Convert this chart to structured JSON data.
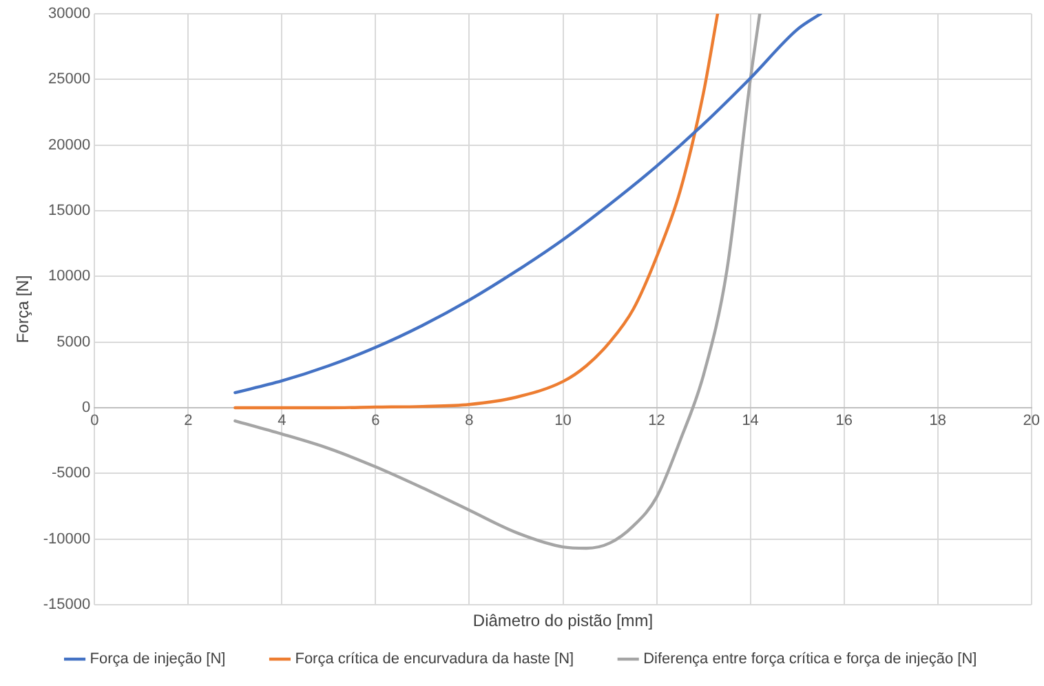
{
  "chart_data": {
    "type": "line",
    "xlabel": "Diâmetro do pistão [mm]",
    "ylabel": "Força [N]",
    "xlim": [
      0,
      20
    ],
    "xticks": [
      0,
      2,
      4,
      6,
      8,
      10,
      12,
      14,
      16,
      18,
      20
    ],
    "ylim": [
      -15000,
      30000
    ],
    "yticks": [
      -15000,
      -10000,
      -5000,
      0,
      5000,
      10000,
      15000,
      20000,
      25000,
      30000
    ],
    "grid": true,
    "legend": "bottom",
    "marker": "none",
    "line_style": "solid",
    "series": [
      {
        "name": "Força de injeção [N]",
        "color": "#4472c4",
        "x": [
          3,
          4,
          5,
          6,
          7,
          8,
          9,
          10,
          11,
          12,
          13,
          14,
          15,
          15.5
        ],
        "values": [
          1150,
          2050,
          3200,
          4600,
          6270,
          8200,
          10400,
          12800,
          15500,
          18400,
          21600,
          25100,
          28800,
          30000
        ]
      },
      {
        "name": "Força crítica de encurvadura da haste [N]",
        "color": "#ed7d31",
        "x": [
          3,
          4,
          5,
          6,
          7,
          8,
          9,
          10,
          10.5,
          11,
          11.5,
          12,
          12.5,
          13,
          13.3
        ],
        "values": [
          0,
          0,
          0,
          50,
          100,
          250,
          800,
          2000,
          3200,
          5000,
          7500,
          11500,
          16500,
          24000,
          30000
        ]
      },
      {
        "name": "Diferença entre força crítica e força de injeção [N]",
        "color": "#a5a5a5",
        "x": [
          3,
          4,
          5,
          6,
          7,
          8,
          9,
          10,
          10.5,
          11,
          11.5,
          12,
          12.5,
          13,
          13.5,
          14,
          14.2
        ],
        "values": [
          -1000,
          -2000,
          -3100,
          -4500,
          -6100,
          -7800,
          -9500,
          -10600,
          -10700,
          -10300,
          -9000,
          -6800,
          -2500,
          2500,
          10500,
          25000,
          30000
        ]
      }
    ]
  }
}
